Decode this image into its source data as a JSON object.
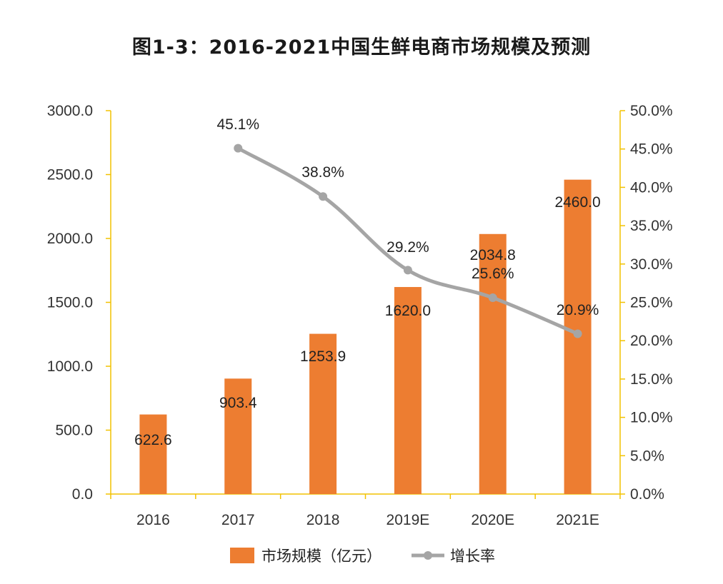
{
  "chart_data": {
    "type": "bar",
    "title": "图1-3：2016-2021中国生鲜电商市场规模及预测",
    "categories": [
      "2016",
      "2017",
      "2018",
      "2019E",
      "2020E",
      "2021E"
    ],
    "series": [
      {
        "name": "市场规模（亿元）",
        "type": "bar",
        "axis": "left",
        "values": [
          622.6,
          903.4,
          1253.9,
          1620.0,
          2034.8,
          2460.0
        ],
        "labels": [
          "622.6",
          "903.4",
          "1253.9",
          "1620.0",
          "2034.8",
          "2460.0"
        ],
        "color": "#ED7D31"
      },
      {
        "name": "增长率",
        "type": "line",
        "axis": "right",
        "values": [
          null,
          45.1,
          38.8,
          29.2,
          25.6,
          20.9
        ],
        "labels": [
          null,
          "45.1%",
          "38.8%",
          "29.2%",
          "25.6%",
          "20.9%"
        ],
        "color": "#A5A5A5"
      }
    ],
    "y_left": {
      "min": 0,
      "max": 3000,
      "ticks": [
        "0.0",
        "500.0",
        "1000.0",
        "1500.0",
        "2000.0",
        "2500.0",
        "3000.0"
      ]
    },
    "y_right": {
      "min": 0,
      "max": 50,
      "ticks": [
        "0.0%",
        "5.0%",
        "10.0%",
        "15.0%",
        "20.0%",
        "25.0%",
        "30.0%",
        "35.0%",
        "40.0%",
        "45.0%",
        "50.0%"
      ]
    },
    "axis_color": "#F2C200",
    "grid": false,
    "legend_position": "bottom"
  }
}
